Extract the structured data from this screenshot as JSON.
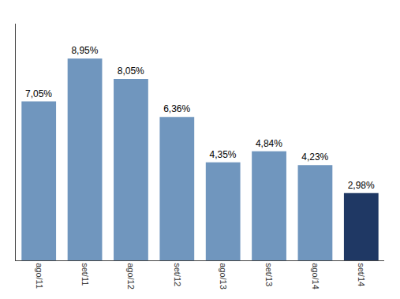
{
  "chart_data": {
    "type": "bar",
    "categories": [
      "ago/11",
      "set/11",
      "ago/12",
      "set/12",
      "ago/13",
      "set/13",
      "ago/14",
      "set/14"
    ],
    "values": [
      7.05,
      8.95,
      8.05,
      6.36,
      4.35,
      4.84,
      4.23,
      2.98
    ],
    "value_labels": [
      "7,05%",
      "8,95%",
      "8,05%",
      "6,36%",
      "4,35%",
      "4,84%",
      "4,23%",
      "2,98%"
    ],
    "colors": [
      "#7096be",
      "#7096be",
      "#7096be",
      "#7096be",
      "#7096be",
      "#7096be",
      "#7096be",
      "#1f3864"
    ],
    "ylim": [
      0,
      10.5
    ],
    "grid": false,
    "data_labels": true,
    "tick_labels": "x"
  }
}
